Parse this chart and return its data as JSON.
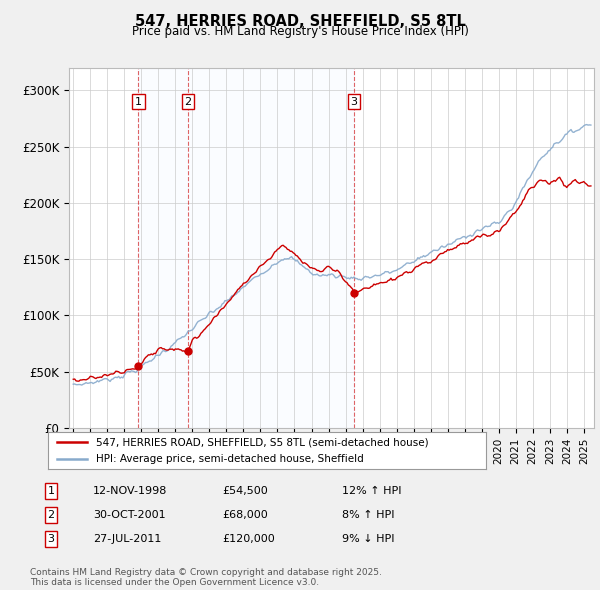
{
  "title1": "547, HERRIES ROAD, SHEFFIELD, S5 8TL",
  "title2": "Price paid vs. HM Land Registry's House Price Index (HPI)",
  "legend_house": "547, HERRIES ROAD, SHEFFIELD, S5 8TL (semi-detached house)",
  "legend_hpi": "HPI: Average price, semi-detached house, Sheffield",
  "footer": "Contains HM Land Registry data © Crown copyright and database right 2025.\nThis data is licensed under the Open Government Licence v3.0.",
  "sale_prices": [
    54500,
    68000,
    120000
  ],
  "sale_labels": [
    "1",
    "2",
    "3"
  ],
  "color_house": "#cc0000",
  "color_hpi": "#88aacc",
  "color_shade": "#ddeeff",
  "color_dashed": "#cc0000",
  "ylim": [
    0,
    320000
  ],
  "yticks": [
    0,
    50000,
    100000,
    150000,
    200000,
    250000,
    300000
  ],
  "ytick_labels": [
    "£0",
    "£50K",
    "£100K",
    "£150K",
    "£200K",
    "£250K",
    "£300K"
  ],
  "background_color": "#f0f0f0",
  "plot_bg_color": "#ffffff",
  "xstart": 1995,
  "xend": 2025
}
